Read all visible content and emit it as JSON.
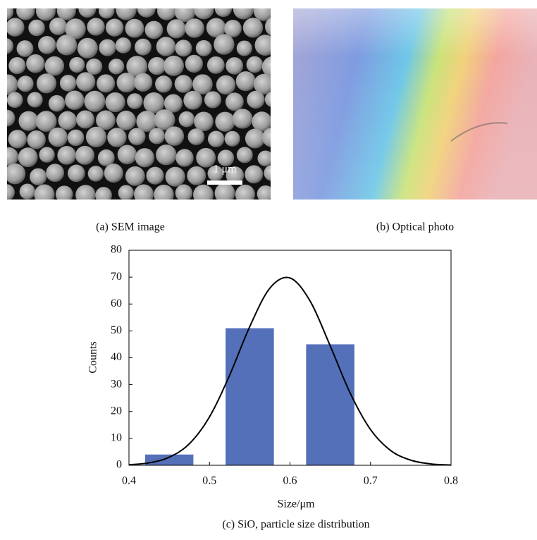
{
  "figure": {
    "panel_a": {
      "caption": "(a) SEM image",
      "scale_bar": "1 μm"
    },
    "panel_b": {
      "caption": "(b) Optical photo"
    },
    "panel_c": {
      "caption": "(c) SiO, particle size distribution"
    }
  },
  "chart_data": {
    "type": "bar",
    "xlabel": "Size/μm",
    "ylabel": "Counts",
    "xlim": [
      0.4,
      0.8
    ],
    "xticks": [
      0.4,
      0.5,
      0.6,
      0.7,
      0.8
    ],
    "ylim": [
      0,
      80
    ],
    "yticks": [
      0,
      10,
      20,
      30,
      40,
      50,
      60,
      70,
      80
    ],
    "series": [
      {
        "type": "bar",
        "color": "#5470b8",
        "x": [
          0.45,
          0.55,
          0.65
        ],
        "values": [
          4,
          51,
          45
        ]
      },
      {
        "type": "line",
        "color": "#000000",
        "x": [
          0.4,
          0.425,
          0.45,
          0.475,
          0.5,
          0.525,
          0.55,
          0.575,
          0.6,
          0.625,
          0.65,
          0.675,
          0.7,
          0.725,
          0.75,
          0.775,
          0.8
        ],
        "values": [
          0.2,
          0.9,
          3.0,
          8.0,
          18.0,
          33.5,
          51.6,
          65.9,
          69.7,
          61.1,
          44.4,
          26.7,
          13.3,
          5.5,
          1.9,
          0.5,
          0.1
        ]
      }
    ]
  }
}
